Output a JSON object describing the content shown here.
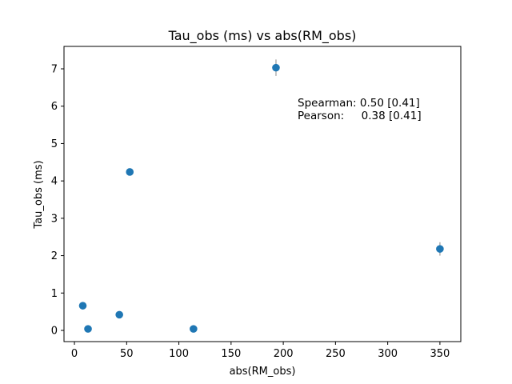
{
  "chart_data": {
    "type": "scatter",
    "title": "Tau_obs (ms) vs abs(RM_obs)",
    "xlabel": "abs(RM_obs)",
    "ylabel": "Tau_obs (ms)",
    "xlim": [
      -10,
      370
    ],
    "ylim": [
      -0.3,
      7.6
    ],
    "xticks": [
      0,
      50,
      100,
      150,
      200,
      250,
      300,
      350
    ],
    "yticks": [
      0,
      1,
      2,
      3,
      4,
      5,
      6,
      7
    ],
    "grid": false,
    "marker_color": "#1f77b4",
    "errorbar_color": "#b0b0b0",
    "points": [
      {
        "x": 8,
        "y": 0.66,
        "yerr": 0.02
      },
      {
        "x": 13,
        "y": 0.04,
        "yerr": 0.01
      },
      {
        "x": 43,
        "y": 0.42,
        "yerr": 0.02
      },
      {
        "x": 53,
        "y": 4.24,
        "yerr": 0.05
      },
      {
        "x": 114,
        "y": 0.04,
        "yerr": 0.01
      },
      {
        "x": 193,
        "y": 7.03,
        "yerr": 0.22
      },
      {
        "x": 350,
        "y": 2.18,
        "yerr": 0.18
      }
    ],
    "annotations": [
      "Spearman: 0.50 [0.41]",
      "Pearson:     0.38 [0.41]"
    ]
  }
}
